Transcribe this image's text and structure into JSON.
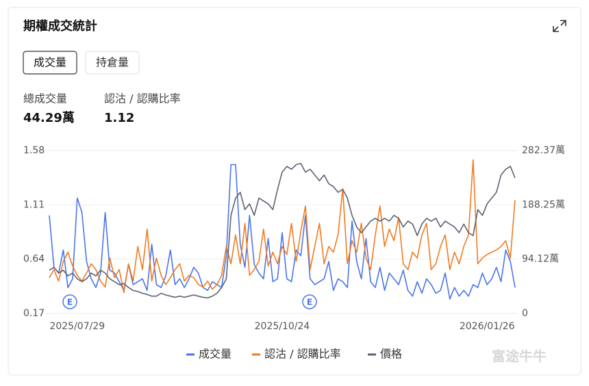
{
  "header": {
    "title": "期權成交統計"
  },
  "tabs": [
    "成交量",
    "持倉量"
  ],
  "stats": [
    {
      "label": "總成交量",
      "value": "44.29萬"
    },
    {
      "label": "認沽 / 認購比率",
      "value": "1.12"
    }
  ],
  "chart_data": {
    "type": "line",
    "categories": [
      null,
      null,
      null,
      null,
      null,
      null,
      "2025/07/29",
      null,
      null,
      null,
      null,
      null,
      null,
      null,
      null,
      null,
      null,
      null,
      null,
      null,
      null,
      null,
      null,
      null,
      null,
      null,
      null,
      null,
      null,
      null,
      null,
      null,
      null,
      null,
      null,
      null,
      null,
      null,
      null,
      null,
      null,
      null,
      null,
      null,
      null,
      null,
      null,
      null,
      null,
      null,
      "2025/10/24",
      null,
      null,
      null,
      null,
      null,
      null,
      null,
      null,
      null,
      null,
      null,
      null,
      null,
      null,
      null,
      null,
      null,
      null,
      null,
      null,
      null,
      null,
      null,
      null,
      null,
      null,
      null,
      null,
      null,
      null,
      null,
      null,
      null,
      null,
      null,
      null,
      null,
      null,
      null,
      null,
      null,
      null,
      null,
      "2026/01/26",
      null,
      null,
      null,
      null,
      null,
      null
    ],
    "series": [
      {
        "name": "成交量",
        "color": "#4a74e8",
        "axis": "y2",
        "values": [
          170,
          80,
          70,
          110,
          45,
          60,
          200,
          175,
          90,
          60,
          45,
          70,
          175,
          75,
          70,
          55,
          40,
          85,
          50,
          55,
          60,
          40,
          120,
          50,
          45,
          65,
          110,
          50,
          60,
          45,
          60,
          80,
          70,
          45,
          40,
          55,
          50,
          45,
          100,
          258,
          258,
          120,
          80,
          170,
          85,
          70,
          60,
          130,
          55,
          60,
          140,
          60,
          55,
          110,
          100,
          170,
          60,
          50,
          55,
          60,
          90,
          40,
          60,
          55,
          45,
          160,
          90,
          60,
          130,
          55,
          45,
          80,
          40,
          70,
          60,
          50,
          75,
          40,
          30,
          55,
          35,
          60,
          50,
          35,
          40,
          70,
          25,
          45,
          30,
          40,
          30,
          50,
          45,
          70,
          50,
          60,
          80,
          55,
          110,
          90,
          45
        ]
      },
      {
        "name": "認沽 / 認購比率",
        "color": "#f07a1f",
        "values": [
          0.48,
          0.55,
          0.45,
          0.62,
          0.7,
          0.58,
          0.5,
          0.45,
          0.52,
          0.6,
          0.55,
          0.45,
          0.4,
          0.65,
          0.48,
          0.55,
          0.35,
          0.6,
          0.45,
          0.75,
          0.55,
          0.9,
          0.45,
          0.65,
          0.5,
          0.42,
          0.48,
          0.55,
          0.6,
          0.45,
          0.5,
          0.48,
          0.42,
          0.4,
          0.45,
          0.38,
          0.42,
          0.5,
          0.75,
          0.6,
          0.85,
          0.6,
          0.95,
          0.5,
          0.55,
          0.62,
          0.9,
          0.58,
          0.7,
          0.6,
          0.75,
          0.68,
          0.95,
          0.62,
          0.88,
          1.1,
          0.55,
          0.75,
          0.95,
          0.6,
          0.75,
          0.7,
          0.85,
          1.25,
          0.6,
          0.8,
          0.7,
          0.95,
          0.65,
          0.55,
          0.85,
          1.1,
          0.75,
          0.9,
          0.8,
          1.0,
          0.6,
          0.55,
          0.7,
          0.65,
          0.85,
          0.95,
          0.55,
          0.6,
          0.75,
          0.85,
          0.55,
          0.7,
          0.6,
          0.75,
          0.85,
          1.5,
          0.6,
          0.65,
          0.68,
          0.7,
          0.72,
          0.75,
          0.8,
          0.65,
          1.15
        ]
      },
      {
        "name": "價格",
        "color": "#5a6170",
        "axis": "y2",
        "values": [
          75,
          80,
          70,
          75,
          65,
          70,
          60,
          55,
          60,
          70,
          65,
          75,
          70,
          60,
          55,
          50,
          52,
          45,
          40,
          38,
          35,
          33,
          30,
          30,
          35,
          32,
          30,
          28,
          30,
          28,
          30,
          32,
          30,
          28,
          27,
          30,
          35,
          45,
          60,
          170,
          200,
          210,
          180,
          190,
          170,
          200,
          195,
          190,
          180,
          215,
          245,
          255,
          250,
          258,
          260,
          245,
          250,
          240,
          230,
          240,
          225,
          220,
          210,
          215,
          200,
          170,
          150,
          140,
          150,
          160,
          165,
          160,
          165,
          160,
          170,
          165,
          150,
          160,
          155,
          135,
          155,
          165,
          160,
          165,
          150,
          160,
          155,
          150,
          140,
          155,
          140,
          135,
          180,
          170,
          190,
          200,
          210,
          240,
          250,
          255,
          235
        ]
      }
    ],
    "ylim": [
      0.17,
      1.58
    ],
    "yticks": [
      0.17,
      0.64,
      1.11,
      1.58
    ],
    "y2lim": [
      0,
      282.37
    ],
    "y2ticks": [
      0,
      {
        "value": 94.12,
        "label": "94.12萬"
      },
      {
        "value": 188.25,
        "label": "188.25萬"
      },
      {
        "value": 282.37,
        "label": "282.37萬"
      }
    ],
    "grid": true,
    "legend": "bottom",
    "events": [
      "E",
      "E"
    ]
  },
  "watermark": "富途牛牛"
}
